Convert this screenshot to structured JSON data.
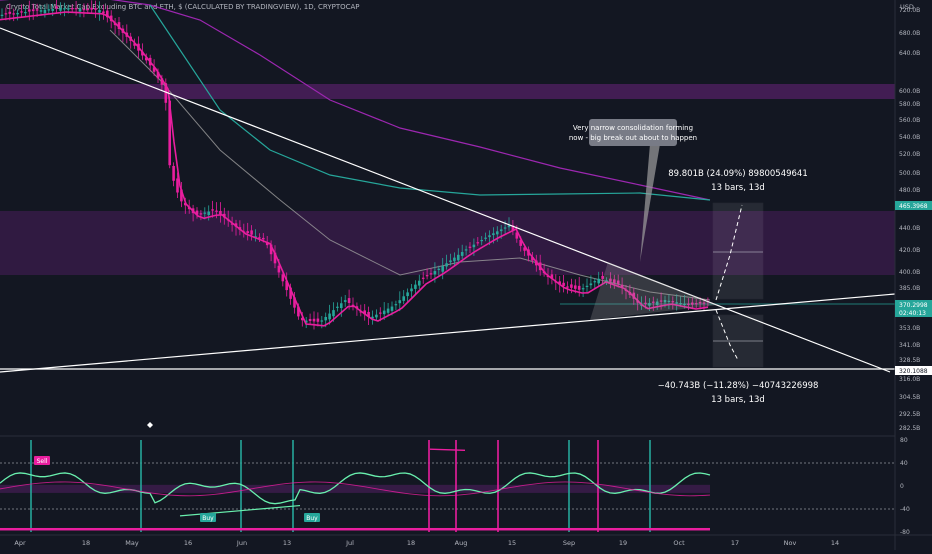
{
  "header": {
    "title": "Crypto Total Market Cap Excluding BTC and ETH, $ (CALCULATED BY TRADINGVIEW), 1D, CRYPTOCAP"
  },
  "chart_data": {
    "type": "candlestick",
    "currency": "USD",
    "x_ticks": [
      "Apr",
      "18",
      "May",
      "16",
      "Jun",
      "13",
      "Jul",
      "18",
      "Aug",
      "15",
      "Sep",
      "19",
      "Oct",
      "17",
      "Nov",
      "14"
    ],
    "y_ticks": [
      "720.0B",
      "680.0B",
      "640.0B",
      "600.0B",
      "580.0B",
      "560.0B",
      "540.0B",
      "520.0B",
      "500.0B",
      "480.0B",
      "460.0B",
      "440.0B",
      "420.0B",
      "400.0B",
      "385.0B",
      "370.0B",
      "353.0B",
      "341.0B",
      "328.5B",
      "316.0B",
      "304.5B",
      "292.5B",
      "282.5B"
    ],
    "price_labels": [
      {
        "text": "465.3968",
        "color": "#26a69a"
      },
      {
        "text": "370.2998",
        "color": "#26a69a"
      },
      {
        "text": "02:40:13",
        "color": "#26a69a"
      },
      {
        "text": "320.1088",
        "color": "#ffffff"
      }
    ],
    "annotations": {
      "callout": "Very narrow consolidation forming now - big break out about to happen",
      "long_line1": "89.801B (24.09%) 89800549641",
      "long_line2": "13 bars, 13d",
      "short_line1": "−40.743B (−11.28%) −40743226998",
      "short_line2": "13 bars, 13d"
    },
    "oscillator": {
      "y_ticks": [
        "80",
        "40",
        "0",
        "-40",
        "-80"
      ],
      "labels": [
        "Sell",
        "Buy",
        "Buy"
      ]
    },
    "colors": {
      "background": "#131722",
      "bull_candle": "#26a69a",
      "bear_candle": "#e91e9f",
      "ema_fast": "#e91e9f",
      "ema_slow": "#26a69a",
      "ma_long": "#9c27b0",
      "ma_mid": "#9e9e9e",
      "zone": "#9c27b0",
      "trendline": "#ffffff"
    }
  }
}
